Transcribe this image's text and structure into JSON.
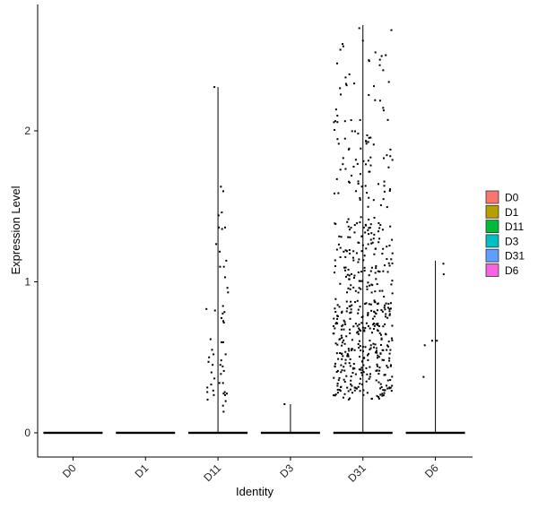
{
  "chart_data": {
    "type": "violin-jitter",
    "title": "",
    "xlabel": "Identity",
    "ylabel": "Expression Level",
    "ylim": [
      -0.15,
      2.75
    ],
    "yticks": [
      0,
      1,
      2
    ],
    "grid": false,
    "legend_position": "right",
    "categories": [
      "D0",
      "D1",
      "D11",
      "D3",
      "D31",
      "D6"
    ],
    "colors": {
      "D0": "#F8766D",
      "D1": "#B79F00",
      "D11": "#00BA38",
      "D3": "#00BFC4",
      "D31": "#619CFF",
      "D6": "#F564E3"
    },
    "violin_max": {
      "D0": 0,
      "D1": 0,
      "D11": 2.29,
      "D3": 0.19,
      "D31": 2.7,
      "D6": 1.14
    },
    "points": {
      "D0": [],
      "D1": [],
      "D11": [
        [
          -0.12,
          2.29
        ],
        [
          0.18,
          1.6
        ],
        [
          0.1,
          1.63
        ],
        [
          0.13,
          1.46
        ],
        [
          0.02,
          1.44
        ],
        [
          0.03,
          1.36
        ],
        [
          0.14,
          1.35
        ],
        [
          0.24,
          1.36
        ],
        [
          -0.06,
          1.25
        ],
        [
          0.06,
          1.2
        ],
        [
          0.28,
          1.14
        ],
        [
          0.32,
          0.96
        ],
        [
          0.2,
          1.1
        ],
        [
          0.07,
          1.1
        ],
        [
          0.24,
          1.03
        ],
        [
          0.34,
          0.93
        ],
        [
          -0.39,
          0.82
        ],
        [
          0.17,
          0.84
        ],
        [
          -0.1,
          0.81
        ],
        [
          0.16,
          0.79
        ],
        [
          0.22,
          0.8
        ],
        [
          0.12,
          0.76
        ],
        [
          0.18,
          0.74
        ],
        [
          0.2,
          0.73
        ],
        [
          -0.25,
          0.62
        ],
        [
          -0.2,
          0.55
        ],
        [
          0.12,
          0.6
        ],
        [
          0.18,
          0.6
        ],
        [
          -0.3,
          0.5
        ],
        [
          -0.15,
          0.52
        ],
        [
          0.26,
          0.52
        ],
        [
          0.11,
          0.48
        ],
        [
          -0.32,
          0.47
        ],
        [
          -0.18,
          0.45
        ],
        [
          0.08,
          0.45
        ],
        [
          0.16,
          0.44
        ],
        [
          -0.22,
          0.4
        ],
        [
          0.1,
          0.39
        ],
        [
          0.2,
          0.41
        ],
        [
          -0.12,
          0.36
        ],
        [
          -0.36,
          0.3
        ],
        [
          -0.23,
          0.32
        ],
        [
          0.05,
          0.33
        ],
        [
          0.17,
          0.33
        ],
        [
          -0.36,
          0.27
        ],
        [
          -0.16,
          0.28
        ],
        [
          0.23,
          0.27
        ],
        [
          0.3,
          0.26
        ],
        [
          -0.14,
          0.25
        ],
        [
          0.19,
          0.26
        ],
        [
          0.24,
          0.25
        ],
        [
          -0.35,
          0.22
        ],
        [
          0.26,
          0.21
        ],
        [
          0.17,
          0.18
        ],
        [
          0.19,
          0.14
        ]
      ],
      "D3": [
        [
          -0.2,
          0.19
        ]
      ],
      "D31": [],
      "D6": [
        [
          -0.36,
          0.58
        ],
        [
          -0.4,
          0.37
        ],
        [
          -0.11,
          0.61
        ],
        [
          0.05,
          0.61
        ],
        [
          0.27,
          1.12
        ],
        [
          0.28,
          1.05
        ]
      ]
    },
    "d31_jitter_seed": 42,
    "d31_point_count": 560
  },
  "legend": {
    "items": [
      "D0",
      "D1",
      "D11",
      "D3",
      "D31",
      "D6"
    ]
  }
}
